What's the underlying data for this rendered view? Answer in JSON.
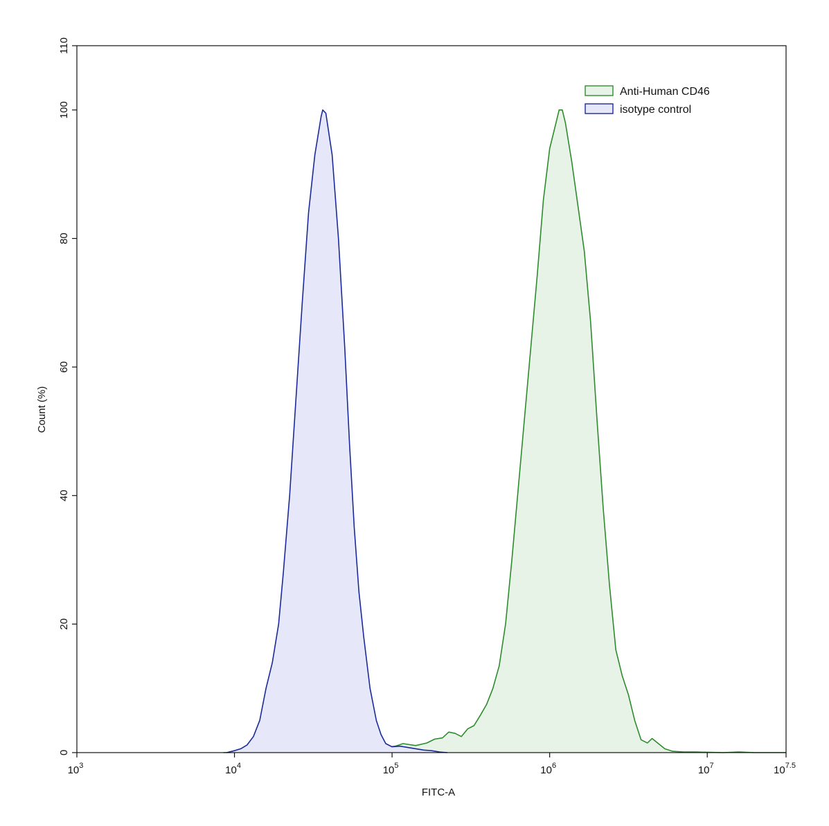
{
  "chart_data": {
    "type": "area",
    "title": "",
    "xlabel": "FITC-A",
    "ylabel": "Count  (%)",
    "x_scale": "log10",
    "xlim": [
      1000,
      31622776.6
    ],
    "ylim": [
      0,
      110
    ],
    "x_ticks": [
      {
        "base": "10",
        "exp": "3"
      },
      {
        "base": "10",
        "exp": "4"
      },
      {
        "base": "10",
        "exp": "5"
      },
      {
        "base": "10",
        "exp": "6"
      },
      {
        "base": "10",
        "exp": "7"
      },
      {
        "base": "10",
        "exp": "7.5"
      }
    ],
    "y_ticks": [
      "0",
      "20",
      "40",
      "60",
      "80",
      "100",
      "110"
    ],
    "grid": false,
    "legend_position": "top-right",
    "series": [
      {
        "name": "Anti-Human CD46",
        "stroke": "#2e8b2e",
        "fill": "#e6f3e6",
        "points": [
          [
            8511,
            0.0
          ],
          [
            15849,
            0.1
          ],
          [
            25119,
            0.3
          ],
          [
            39811,
            0.2
          ],
          [
            63096,
            0.3
          ],
          [
            79433,
            0.4
          ],
          [
            91201,
            0.8
          ],
          [
            104713,
            1.0
          ],
          [
            117490,
            1.4
          ],
          [
            141254,
            1.1
          ],
          [
            166000,
            1.5
          ],
          [
            186209,
            2.1
          ],
          [
            208930,
            2.3
          ],
          [
            229087,
            3.2
          ],
          [
            251189,
            3.0
          ],
          [
            275423,
            2.5
          ],
          [
            301995,
            3.7
          ],
          [
            331131,
            4.2
          ],
          [
            363078,
            5.8
          ],
          [
            398107,
            7.5
          ],
          [
            436516,
            10.0
          ],
          [
            478630,
            13.5
          ],
          [
            524807,
            20.0
          ],
          [
            575440,
            30.0
          ],
          [
            630957,
            41.0
          ],
          [
            691831,
            52.0
          ],
          [
            758578,
            63.0
          ],
          [
            831764,
            74.0
          ],
          [
            912011,
            86.0
          ],
          [
            1000000,
            94.0
          ],
          [
            1096478,
            98.0
          ],
          [
            1148154,
            100.0
          ],
          [
            1202264,
            100.0
          ],
          [
            1258925,
            98.0
          ],
          [
            1380384,
            92.0
          ],
          [
            1513561,
            85.0
          ],
          [
            1659587,
            78.0
          ],
          [
            1819701,
            67.0
          ],
          [
            1995262,
            52.0
          ],
          [
            2187762,
            38.0
          ],
          [
            2398833,
            26.0
          ],
          [
            2630268,
            16.0
          ],
          [
            2884032,
            12.0
          ],
          [
            3162278,
            9.0
          ],
          [
            3467369,
            5.0
          ],
          [
            3801894,
            2.0
          ],
          [
            4168694,
            1.5
          ],
          [
            4466836,
            2.2
          ],
          [
            4897788,
            1.4
          ],
          [
            5370318,
            0.6
          ],
          [
            6025596,
            0.2
          ],
          [
            7079458,
            0.1
          ],
          [
            8511380,
            0.1
          ],
          [
            12589254,
            0.0
          ],
          [
            15848932,
            0.1
          ],
          [
            19952623,
            0.0
          ],
          [
            31622777,
            0.0
          ]
        ]
      },
      {
        "name": "isotype control",
        "stroke": "#1a2a9a",
        "fill": "#e6e8fa",
        "points": [
          [
            8912,
            0.0
          ],
          [
            10000,
            0.3
          ],
          [
            10965,
            0.6
          ],
          [
            12023,
            1.2
          ],
          [
            13183,
            2.5
          ],
          [
            14454,
            5.0
          ],
          [
            15849,
            10.0
          ],
          [
            17378,
            14.0
          ],
          [
            19055,
            20.0
          ],
          [
            20417,
            28.0
          ],
          [
            22387,
            40.0
          ],
          [
            24547,
            55.0
          ],
          [
            26915,
            70.0
          ],
          [
            29512,
            84.0
          ],
          [
            32359,
            93.0
          ],
          [
            35481,
            99.0
          ],
          [
            36308,
            100.0
          ],
          [
            38019,
            99.5
          ],
          [
            41687,
            93.0
          ],
          [
            45709,
            80.0
          ],
          [
            50119,
            63.0
          ],
          [
            53703,
            48.0
          ],
          [
            57544,
            35.0
          ],
          [
            61660,
            25.0
          ],
          [
            66069,
            18.0
          ],
          [
            72444,
            10.0
          ],
          [
            79433,
            5.0
          ],
          [
            85114,
            2.8
          ],
          [
            91201,
            1.4
          ],
          [
            100000,
            0.9
          ],
          [
            112202,
            1.0
          ],
          [
            125893,
            0.8
          ],
          [
            141254,
            0.6
          ],
          [
            158489,
            0.4
          ],
          [
            177828,
            0.3
          ],
          [
            199526,
            0.1
          ],
          [
            224000,
            0.0
          ]
        ]
      }
    ]
  }
}
